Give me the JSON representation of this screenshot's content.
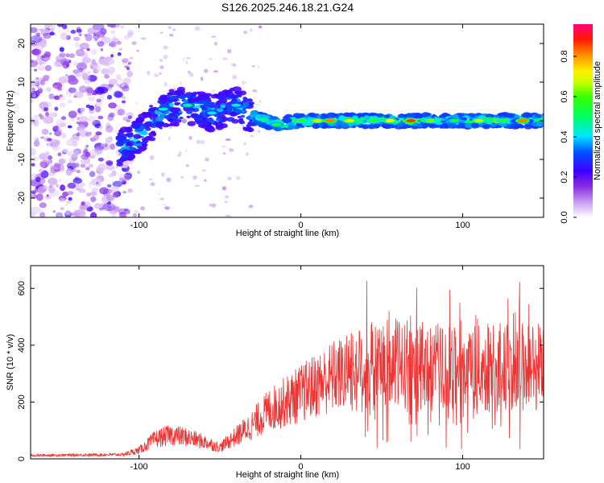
{
  "figure": {
    "title": "S126.2025.246.18.21.G24"
  },
  "chart_data": [
    {
      "type": "heatmap",
      "title": "S126.2025.246.18.21.G24",
      "xlabel": "Height of straight line (km)",
      "ylabel": "Frequency (Hz)",
      "xlim": [
        -167,
        150
      ],
      "ylim": [
        -25,
        25
      ],
      "xticks": [
        -100,
        0,
        100
      ],
      "yticks": [
        -20,
        -10,
        0,
        10,
        20
      ],
      "colorbar": {
        "label": "Normalized spectral amplitude",
        "range": [
          0,
          0.96
        ],
        "ticks": [
          0,
          0.2,
          0.4,
          0.6,
          0.8
        ],
        "colors": [
          "#ffffff",
          "#8a2be2",
          "#0000ff",
          "#00e5ff",
          "#00ff00",
          "#ffff00",
          "#ff8c00",
          "#ff0000",
          "#ff0080"
        ]
      },
      "ridge": {
        "description_points": [
          {
            "x": -110,
            "y": -7
          },
          {
            "x": -100,
            "y": -4
          },
          {
            "x": -85,
            "y": 3
          },
          {
            "x": -70,
            "y": 4
          },
          {
            "x": -55,
            "y": 2
          },
          {
            "x": -40,
            "y": 4
          },
          {
            "x": -30,
            "y": 1
          },
          {
            "x": -15,
            "y": -1
          },
          {
            "x": 0,
            "y": 0
          },
          {
            "x": 50,
            "y": 0
          },
          {
            "x": 100,
            "y": 0
          },
          {
            "x": 150,
            "y": 0
          }
        ]
      }
    },
    {
      "type": "line",
      "xlabel": "Height of straight line (km)",
      "ylabel": "SNR (10 * v/v)",
      "xlim": [
        -167,
        150
      ],
      "ylim": [
        0,
        680
      ],
      "xticks": [
        -100,
        0,
        100
      ],
      "yticks": [
        0,
        200,
        400,
        600
      ],
      "series": [
        {
          "name": "SNR",
          "color": "#ee3333",
          "envelope": [
            {
              "x": -167,
              "y": 12
            },
            {
              "x": -110,
              "y": 15
            },
            {
              "x": -100,
              "y": 30
            },
            {
              "x": -90,
              "y": 70
            },
            {
              "x": -80,
              "y": 85
            },
            {
              "x": -70,
              "y": 75
            },
            {
              "x": -60,
              "y": 60
            },
            {
              "x": -50,
              "y": 40
            },
            {
              "x": -40,
              "y": 80
            },
            {
              "x": -30,
              "y": 120
            },
            {
              "x": -20,
              "y": 170
            },
            {
              "x": -10,
              "y": 200
            },
            {
              "x": 0,
              "y": 230
            },
            {
              "x": 20,
              "y": 290
            },
            {
              "x": 40,
              "y": 320
            },
            {
              "x": 60,
              "y": 330
            },
            {
              "x": 80,
              "y": 320
            },
            {
              "x": 100,
              "y": 310
            },
            {
              "x": 120,
              "y": 320
            },
            {
              "x": 150,
              "y": 330
            }
          ]
        }
      ]
    }
  ]
}
